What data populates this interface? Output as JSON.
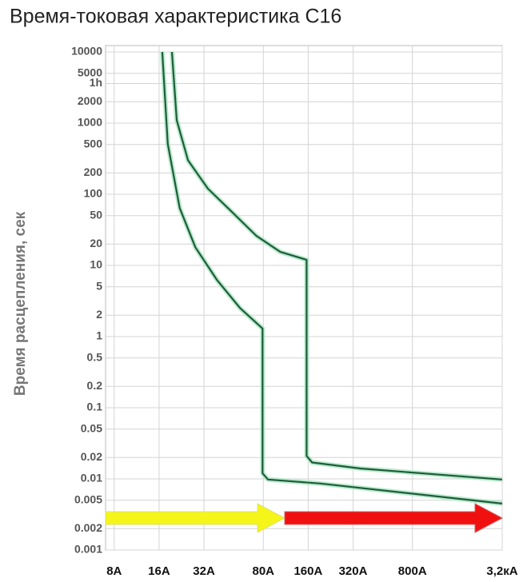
{
  "chart_data": {
    "type": "line",
    "title": "Время-токовая характеристика С16",
    "y_label": "Время расцепления, сек",
    "xscale": "log",
    "yscale": "log",
    "grid": true,
    "xlim": [
      7,
      3200
    ],
    "ylim": [
      0.001,
      10000
    ],
    "xticks": [
      {
        "value": 8,
        "label": "8A"
      },
      {
        "value": 16,
        "label": "16A"
      },
      {
        "value": 32,
        "label": "32A"
      },
      {
        "value": 80,
        "label": "80A"
      },
      {
        "value": 160,
        "label": "160A"
      },
      {
        "value": 320,
        "label": "320A"
      },
      {
        "value": 800,
        "label": "800A"
      },
      {
        "value": 3200,
        "label": "3,2кА"
      }
    ],
    "yticks": [
      10000,
      5000,
      {
        "value": 3600,
        "label": "1h"
      },
      2000,
      1000,
      500,
      200,
      100,
      50,
      20,
      10,
      5,
      2,
      1,
      0.5,
      0.2,
      0.1,
      0.05,
      0.02,
      0.01,
      0.005,
      0.002,
      0.001
    ],
    "series": [
      {
        "color": "#1f5c3a",
        "x": [
          19.5,
          21,
          25,
          34,
          49,
          72,
          104,
          156,
          156,
          170,
          358,
          3200
        ],
        "values": [
          10000,
          1100,
          300,
          120,
          57,
          26,
          15.5,
          12,
          0.021,
          0.017,
          0.014,
          0.0098
        ]
      },
      {
        "color": "#1f5c3a",
        "x": [
          16.8,
          18.3,
          22,
          28,
          39,
          56,
          79,
          79,
          86,
          193,
          3200
        ],
        "values": [
          10000,
          510,
          64,
          18,
          6.3,
          2.5,
          1.3,
          0.012,
          0.0098,
          0.0086,
          0.0045
        ]
      }
    ]
  }
}
